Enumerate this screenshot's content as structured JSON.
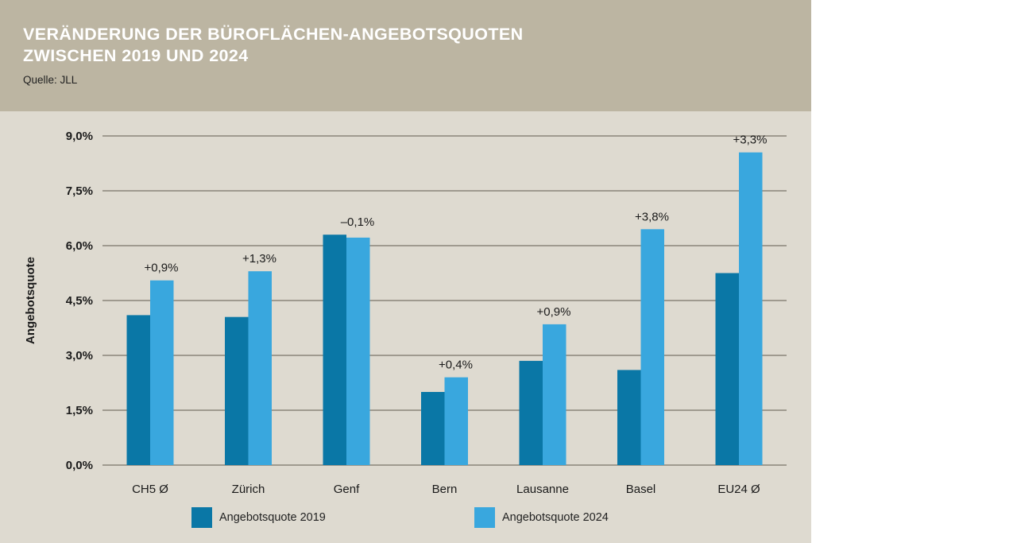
{
  "header": {
    "title_line1": "VERÄNDERUNG DER BÜROFLÄCHEN-ANGEBOTSQUOTEN",
    "title_line2": "ZWISCHEN 2019 UND 2024",
    "source": "Quelle: JLL"
  },
  "colors": {
    "series_2019": "#0a77a6",
    "series_2024": "#39a7de",
    "grid": "#9f9a8f",
    "header_bg": "#bcb5a2",
    "panel_bg": "#dedad0"
  },
  "chart_data": {
    "type": "bar",
    "title": "VERÄNDERUNG DER BÜROFLÄCHEN-ANGEBOTSQUOTEN ZWISCHEN 2019 UND 2024",
    "ylabel": "Angebotsquote",
    "xlabel": "",
    "ylim": [
      0,
      9
    ],
    "yticks": [
      0,
      1.5,
      3,
      4.5,
      6,
      7.5,
      9
    ],
    "ytick_labels": [
      "0,0%",
      "1,5%",
      "3,0%",
      "4,5%",
      "6,0%",
      "7,5%",
      "9,0%"
    ],
    "categories": [
      "CH5 Ø",
      "Zürich",
      "Genf",
      "Bern",
      "Lausanne",
      "Basel",
      "EU24 Ø"
    ],
    "series": [
      {
        "name": "Angebotsquote 2019",
        "values": [
          4.1,
          4.05,
          6.3,
          2.0,
          2.85,
          2.6,
          5.25
        ]
      },
      {
        "name": "Angebotsquote 2024",
        "values": [
          5.05,
          5.3,
          6.22,
          2.4,
          3.85,
          6.45,
          8.55
        ]
      }
    ],
    "annotations": [
      "+0,9%",
      "+1,3%",
      "–0,1%",
      "+0,4%",
      "+0,9%",
      "+3,8%",
      "+3,3%"
    ],
    "grid": true,
    "legend_position": "bottom"
  }
}
